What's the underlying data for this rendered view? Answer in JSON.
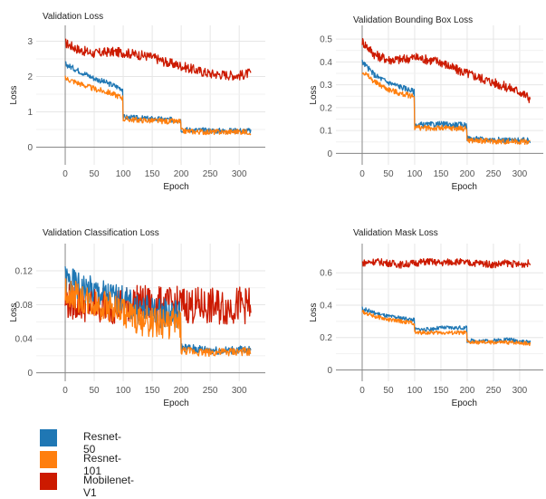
{
  "colors": {
    "resnet50": "#1f77b4",
    "resnet101": "#ff7f0e",
    "mobilenet": "#cc1a00"
  },
  "legend": {
    "items": [
      {
        "label": "Resnet-50",
        "color": "#1f77b4"
      },
      {
        "label": "Resnet-101",
        "color": "#ff7f0e"
      },
      {
        "label": "Mobilenet-V1",
        "color": "#cc1a00"
      }
    ]
  },
  "chart_data": [
    {
      "type": "line",
      "title": "Validation Loss",
      "xlabel": "Epoch",
      "ylabel": "Loss",
      "xlim": [
        -50,
        345
      ],
      "ylim": [
        -0.5,
        3.45
      ],
      "xticks": [
        0,
        50,
        100,
        150,
        200,
        250,
        300
      ],
      "yticks": [
        0,
        1,
        2,
        3
      ],
      "grid": true,
      "series": [
        {
          "name": "Resnet-50",
          "color": "#1f77b4",
          "x": [
            0,
            25,
            50,
            75,
            99,
            100,
            125,
            150,
            175,
            199,
            200,
            225,
            250,
            275,
            300,
            320
          ],
          "y": [
            2.35,
            2.15,
            1.95,
            1.8,
            1.65,
            0.85,
            0.82,
            0.8,
            0.78,
            0.76,
            0.5,
            0.48,
            0.47,
            0.46,
            0.47,
            0.46
          ]
        },
        {
          "name": "Resnet-101",
          "color": "#ff7f0e",
          "x": [
            0,
            25,
            50,
            75,
            99,
            100,
            125,
            150,
            175,
            199,
            200,
            225,
            250,
            275,
            300,
            320
          ],
          "y": [
            1.95,
            1.8,
            1.65,
            1.55,
            1.4,
            0.8,
            0.77,
            0.75,
            0.73,
            0.72,
            0.46,
            0.44,
            0.43,
            0.43,
            0.44,
            0.43
          ]
        },
        {
          "name": "Mobilenet-V1",
          "color": "#cc1a00",
          "x": [
            0,
            25,
            50,
            75,
            100,
            125,
            150,
            175,
            200,
            225,
            250,
            275,
            300,
            320
          ],
          "y": [
            2.95,
            2.75,
            2.65,
            2.7,
            2.68,
            2.62,
            2.55,
            2.4,
            2.3,
            2.18,
            2.08,
            2.05,
            2.03,
            2.1
          ]
        }
      ]
    },
    {
      "type": "line",
      "title": "Validation Bounding Box Loss",
      "xlabel": "Epoch",
      "ylabel": "Loss",
      "xlim": [
        -50,
        345
      ],
      "ylim": [
        -0.05,
        0.56
      ],
      "xticks": [
        0,
        50,
        100,
        150,
        200,
        250,
        300
      ],
      "yticks": [
        0,
        0.1,
        0.2,
        0.3,
        0.4,
        0.5
      ],
      "grid": true,
      "series": [
        {
          "name": "Resnet-50",
          "color": "#1f77b4",
          "x": [
            0,
            25,
            50,
            75,
            99,
            100,
            125,
            150,
            175,
            199,
            200,
            225,
            250,
            275,
            300,
            320
          ],
          "y": [
            0.4,
            0.34,
            0.31,
            0.29,
            0.27,
            0.125,
            0.125,
            0.128,
            0.125,
            0.125,
            0.065,
            0.062,
            0.06,
            0.058,
            0.057,
            0.055
          ]
        },
        {
          "name": "Resnet-101",
          "color": "#ff7f0e",
          "x": [
            0,
            25,
            50,
            75,
            99,
            100,
            125,
            150,
            175,
            199,
            200,
            225,
            250,
            275,
            300,
            320
          ],
          "y": [
            0.36,
            0.31,
            0.28,
            0.26,
            0.25,
            0.115,
            0.11,
            0.11,
            0.11,
            0.108,
            0.058,
            0.055,
            0.053,
            0.052,
            0.052,
            0.05
          ]
        },
        {
          "name": "Mobilenet-V1",
          "color": "#cc1a00",
          "x": [
            0,
            25,
            50,
            75,
            100,
            125,
            150,
            175,
            200,
            225,
            250,
            275,
            300,
            320
          ],
          "y": [
            0.49,
            0.43,
            0.41,
            0.41,
            0.42,
            0.41,
            0.4,
            0.37,
            0.35,
            0.33,
            0.31,
            0.29,
            0.27,
            0.24
          ]
        }
      ]
    },
    {
      "type": "line",
      "title": "Validation Classification Loss",
      "xlabel": "Epoch",
      "ylabel": "Loss",
      "xlim": [
        -50,
        345
      ],
      "ylim": [
        -0.01,
        0.152
      ],
      "xticks": [
        0,
        50,
        100,
        150,
        200,
        250,
        300
      ],
      "yticks": [
        0,
        0.04,
        0.08,
        0.12
      ],
      "grid": true,
      "series": [
        {
          "name": "Resnet-50",
          "color": "#1f77b4",
          "x": [
            0,
            25,
            50,
            75,
            100,
            125,
            150,
            175,
            199,
            200,
            225,
            250,
            275,
            300,
            320
          ],
          "y": [
            0.11,
            0.1,
            0.095,
            0.09,
            0.085,
            0.075,
            0.072,
            0.07,
            0.068,
            0.03,
            0.028,
            0.027,
            0.026,
            0.027,
            0.026
          ]
        },
        {
          "name": "Resnet-101",
          "color": "#ff7f0e",
          "x": [
            0,
            25,
            50,
            75,
            100,
            125,
            150,
            175,
            199,
            200,
            225,
            250,
            275,
            300,
            320
          ],
          "y": [
            0.095,
            0.088,
            0.082,
            0.078,
            0.072,
            0.062,
            0.06,
            0.058,
            0.058,
            0.026,
            0.025,
            0.024,
            0.024,
            0.025,
            0.024
          ]
        },
        {
          "name": "Mobilenet-V1",
          "color": "#cc1a00",
          "x": [
            0,
            25,
            50,
            75,
            100,
            125,
            150,
            175,
            200,
            225,
            250,
            275,
            300,
            320
          ],
          "y": [
            0.085,
            0.082,
            0.08,
            0.079,
            0.08,
            0.082,
            0.08,
            0.079,
            0.08,
            0.079,
            0.078,
            0.077,
            0.08,
            0.079
          ]
        }
      ]
    },
    {
      "type": "line",
      "title": "Validation Mask Loss",
      "xlabel": "Epoch",
      "ylabel": "Loss",
      "xlim": [
        -50,
        345
      ],
      "ylim": [
        -0.07,
        0.78
      ],
      "xticks": [
        0,
        50,
        100,
        150,
        200,
        250,
        300
      ],
      "yticks": [
        0,
        0.2,
        0.4,
        0.6
      ],
      "grid": true,
      "series": [
        {
          "name": "Resnet-50",
          "color": "#1f77b4",
          "x": [
            0,
            25,
            50,
            75,
            99,
            100,
            125,
            150,
            175,
            199,
            200,
            225,
            250,
            275,
            300,
            320
          ],
          "y": [
            0.38,
            0.35,
            0.33,
            0.32,
            0.31,
            0.25,
            0.25,
            0.26,
            0.26,
            0.26,
            0.18,
            0.18,
            0.18,
            0.19,
            0.18,
            0.17
          ]
        },
        {
          "name": "Resnet-101",
          "color": "#ff7f0e",
          "x": [
            0,
            25,
            50,
            75,
            99,
            100,
            125,
            150,
            175,
            199,
            200,
            225,
            250,
            275,
            300,
            320
          ],
          "y": [
            0.36,
            0.33,
            0.31,
            0.3,
            0.29,
            0.23,
            0.23,
            0.23,
            0.23,
            0.23,
            0.17,
            0.17,
            0.17,
            0.17,
            0.17,
            0.16
          ]
        },
        {
          "name": "Mobilenet-V1",
          "color": "#cc1a00",
          "x": [
            0,
            25,
            50,
            75,
            100,
            125,
            150,
            175,
            200,
            225,
            250,
            275,
            300,
            320
          ],
          "y": [
            0.66,
            0.67,
            0.66,
            0.65,
            0.66,
            0.67,
            0.66,
            0.67,
            0.66,
            0.66,
            0.65,
            0.66,
            0.65,
            0.66
          ]
        }
      ]
    }
  ]
}
